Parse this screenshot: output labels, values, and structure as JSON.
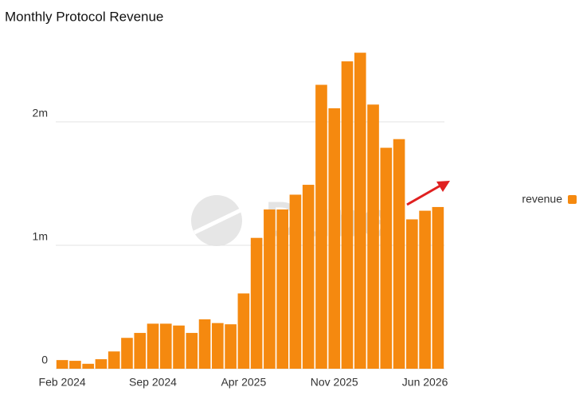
{
  "chart_data": {
    "type": "bar",
    "title": "Monthly Protocol Revenue",
    "watermark": "Dune",
    "categories": [
      "Feb 2024",
      null,
      null,
      null,
      null,
      null,
      null,
      "Sep 2024",
      null,
      null,
      null,
      null,
      null,
      null,
      "Apr 2025",
      null,
      null,
      null,
      null,
      null,
      null,
      "Nov 2025",
      null,
      null,
      null,
      null,
      null,
      null,
      "Jun 2026",
      null
    ],
    "series": [
      {
        "name": "revenue",
        "color": "#f5890f",
        "values": [
          70000,
          64000,
          40000,
          77000,
          140000,
          250000,
          290000,
          365000,
          365000,
          350000,
          290000,
          400000,
          370000,
          360000,
          610000,
          1060000,
          1290000,
          1290000,
          1410000,
          1490000,
          2300000,
          2110000,
          2490000,
          2560000,
          2140000,
          1790000,
          1860000,
          1210000,
          1280000,
          1310000
        ]
      }
    ],
    "ylim": [
      0,
      2600000
    ],
    "yticks": [
      {
        "value": 0,
        "label": "0"
      },
      {
        "value": 1000000,
        "label": "1m"
      },
      {
        "value": 2000000,
        "label": "2m"
      }
    ],
    "grid": true,
    "legend": "right"
  }
}
